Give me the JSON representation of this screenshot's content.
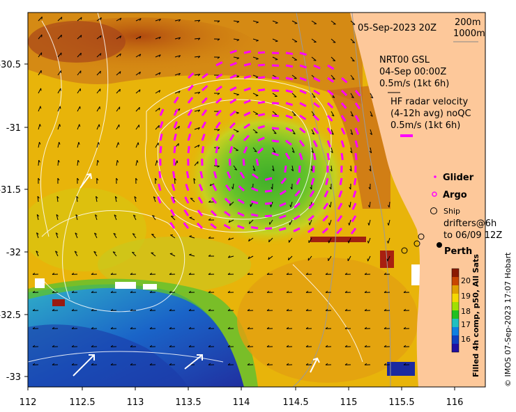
{
  "map": {
    "timestamp": "05-Sep-2023 20Z",
    "scale_200": "200m",
    "scale_1000": "1000m",
    "nrt_line1": "NRT00 GSL",
    "nrt_line2": "04-Sep 00:00Z",
    "nrt_line3": "0.5m/s (1kt 6h)",
    "hf_line1": "HF radar velocity",
    "hf_line2": "(4-12h avg) noQC",
    "hf_line3": "0.5m/s (1kt 6h)",
    "legend": {
      "glider": "Glider",
      "argo": "Argo",
      "ship": "Ship",
      "drifters_line1": "drifters@6h",
      "drifters_line2": "to 06/09 12Z"
    },
    "city": "Perth",
    "colorbar": {
      "ticks": [
        "20",
        "19",
        "18",
        "17",
        "16"
      ],
      "title": "Filled 4h comp, p50, All Sats",
      "colors": [
        "#8b1a00",
        "#c84600",
        "#e0a000",
        "#f5d800",
        "#a0e000",
        "#20c020",
        "#20c0c0",
        "#1080e0",
        "#1040c0",
        "#2010a0"
      ]
    },
    "credit": "© IMOS 07-Sep-2023 17:07 Hobart",
    "axes": {
      "x_ticks": [
        "112",
        "112.5",
        "113",
        "113.5",
        "114",
        "114.5",
        "115",
        "115.5",
        "116"
      ],
      "y_ticks": [
        "-30.5",
        "-31",
        "-31.5",
        "-32",
        "-32.5",
        "-33"
      ]
    },
    "colors": {
      "land": "#fdc89a",
      "hf_arrow": "#ff00ff",
      "current_arrow": "#000000",
      "contour": "#ffffff"
    }
  }
}
